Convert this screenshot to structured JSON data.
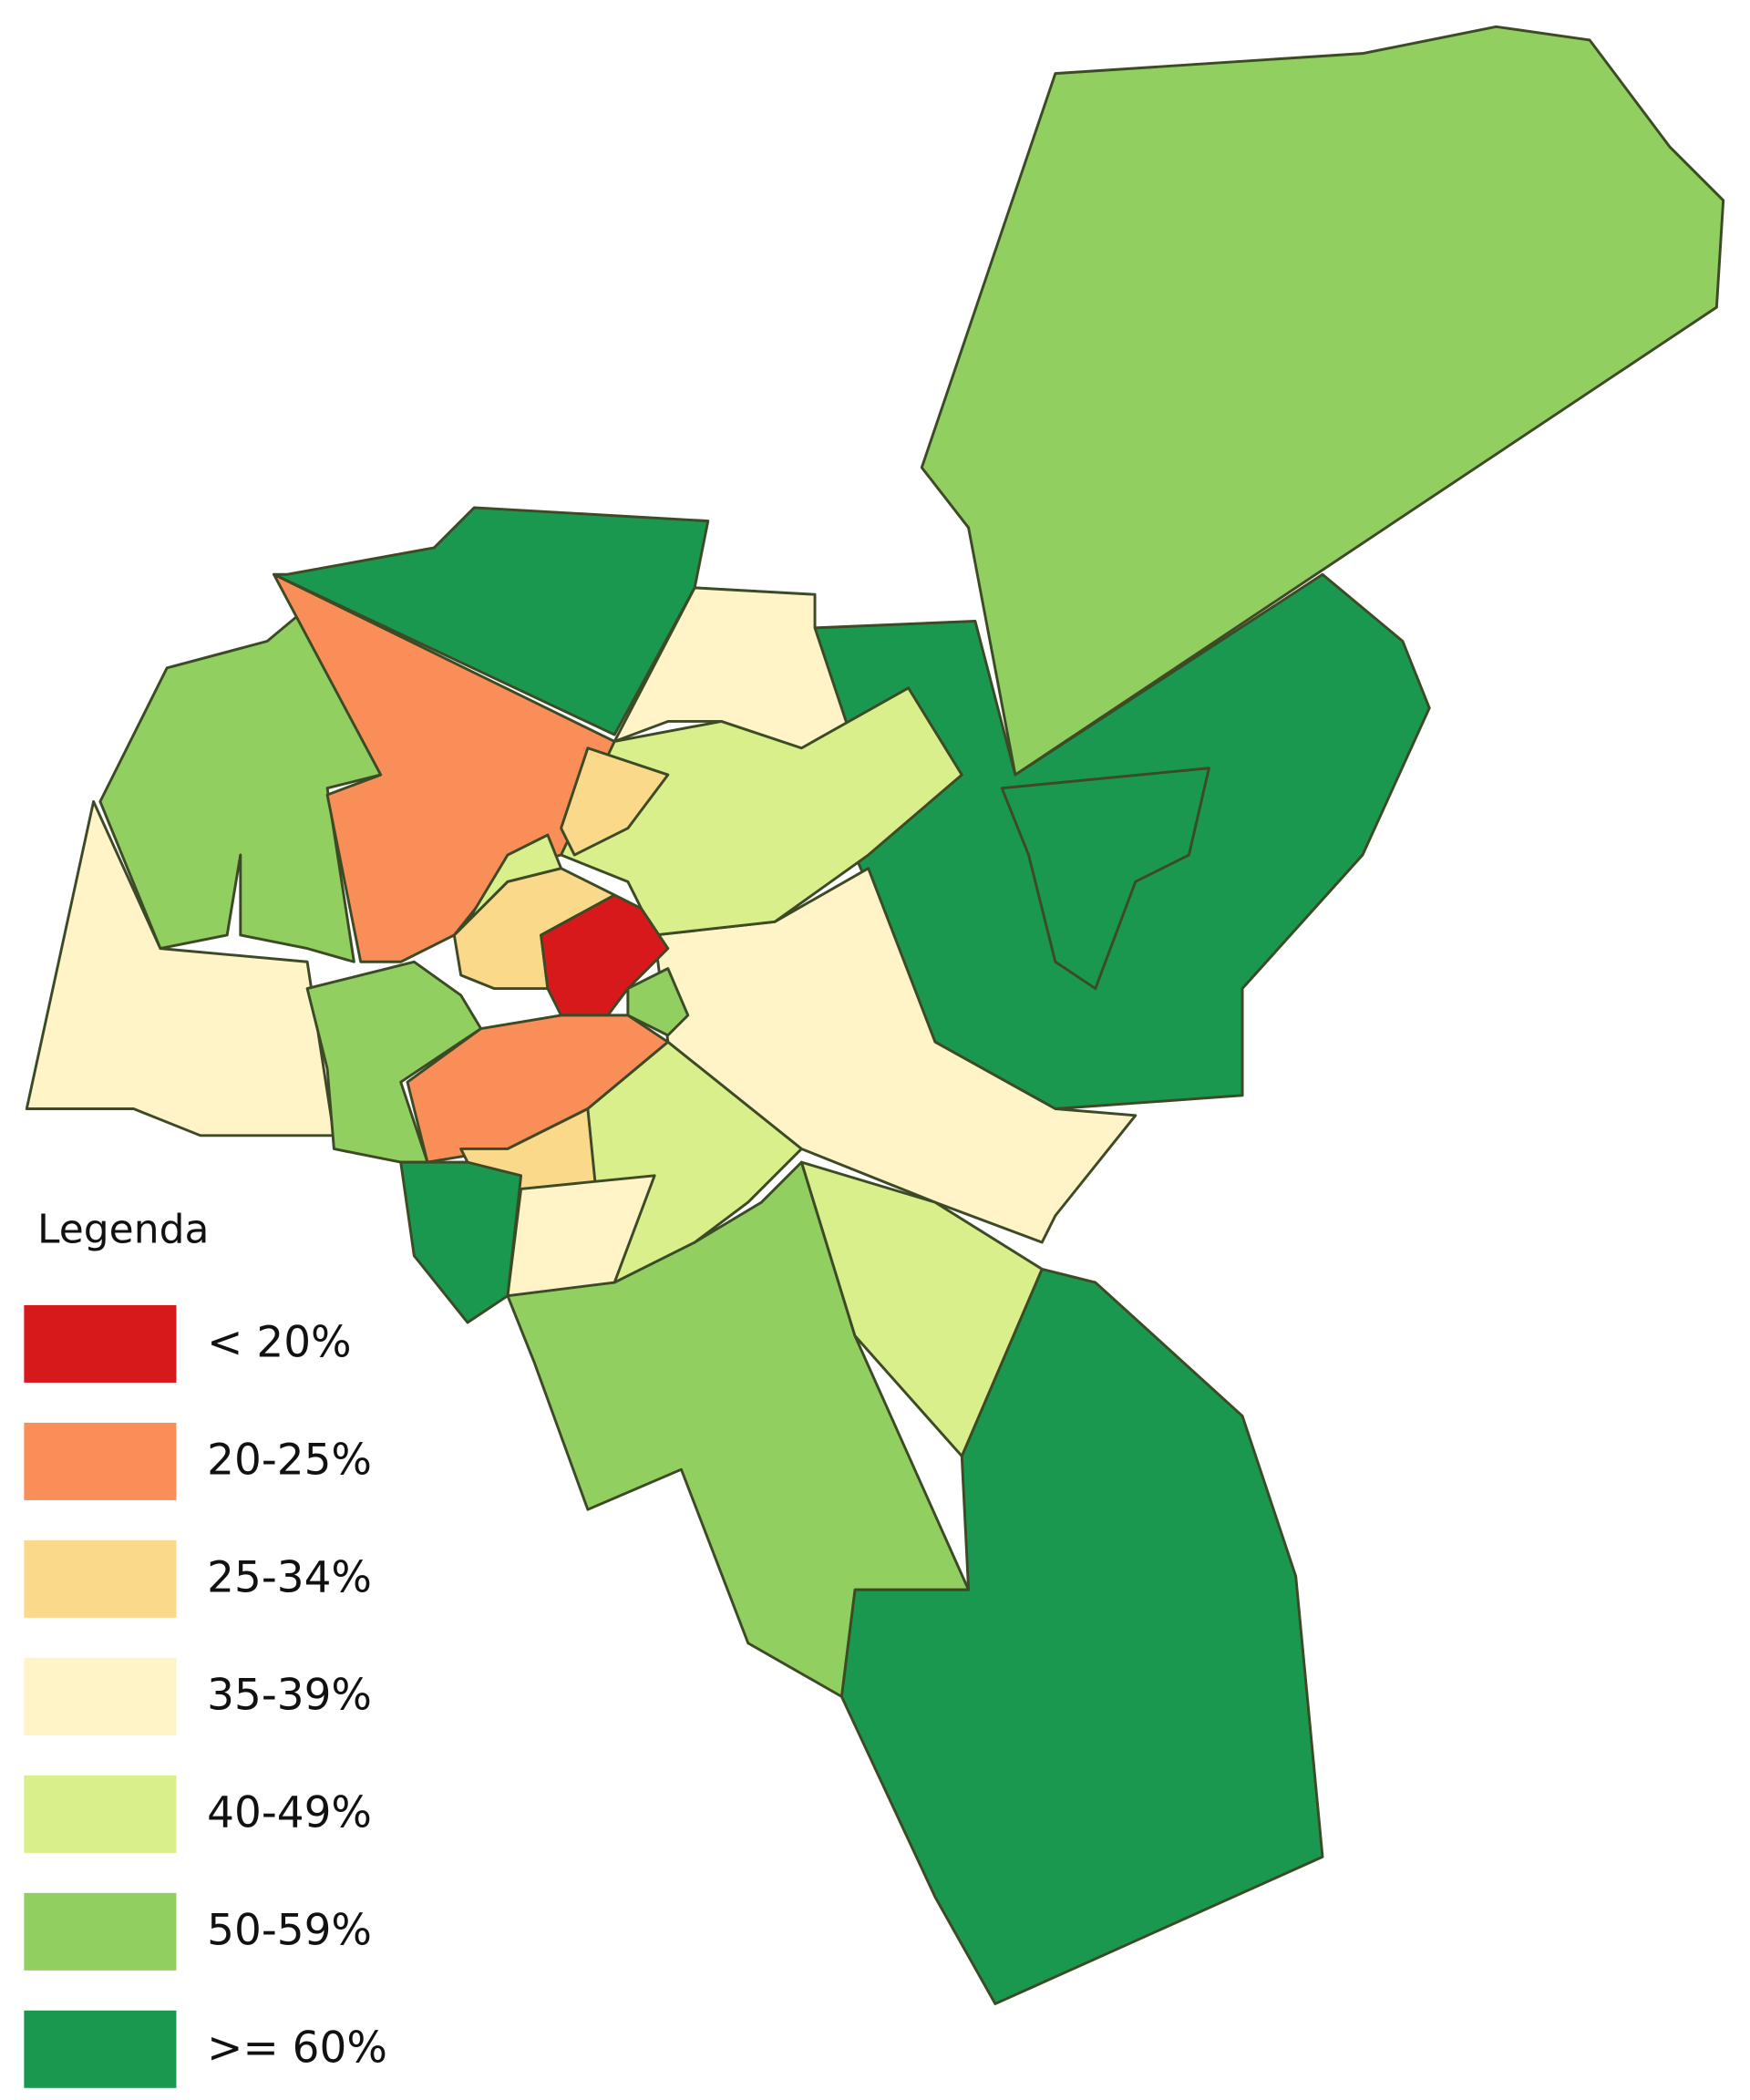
{
  "legend": {
    "title": "Legenda",
    "items": [
      {
        "label": "< 20%",
        "color": "#d7191c"
      },
      {
        "label": "20-25%",
        "color": "#f98e59"
      },
      {
        "label": "25-34%",
        "color": "#fad98a"
      },
      {
        "label": "35-39%",
        "color": "#fff4c8"
      },
      {
        "label": "40-49%",
        "color": "#d9ef8b"
      },
      {
        "label": "50-59%",
        "color": "#91cf60"
      },
      {
        "label": ">= 60%",
        "color": "#1a9850"
      }
    ]
  }
}
